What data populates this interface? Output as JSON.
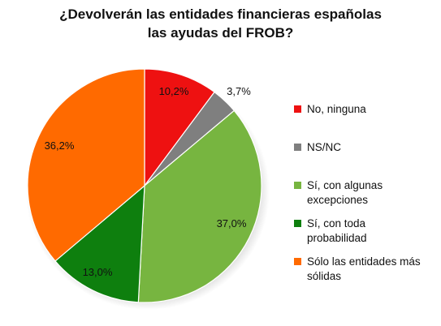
{
  "title_lines": [
    "¿Devolverán las entidades financieras españolas",
    "las ayudas del FROB?"
  ],
  "colors": {
    "no_ninguna": "#ee1111",
    "ns_nc": "#7f7f7f",
    "algunas_excepciones": "#77b540",
    "toda_probabilidad": "#0e7f0e",
    "mas_solidas": "#ff6a00"
  },
  "chart_data": {
    "type": "pie",
    "title": "¿Devolverán las entidades financieras españolas las ayudas del FROB?",
    "start": "12 o'clock, clockwise",
    "legend_position": "right",
    "slices": [
      {
        "key": "no_ninguna",
        "legend": [
          "No, ninguna"
        ],
        "value": 10.2,
        "label": "10,2%"
      },
      {
        "key": "ns_nc",
        "legend": [
          "NS/NC"
        ],
        "value": 3.7,
        "label": "3,7%"
      },
      {
        "key": "algunas_excepciones",
        "legend": [
          "Sí, con algunas",
          "excepciones"
        ],
        "value": 37.0,
        "label": "37,0%"
      },
      {
        "key": "toda_probabilidad",
        "legend": [
          "Sí, con toda",
          "probabilidad"
        ],
        "value": 13.0,
        "label": "13,0%"
      },
      {
        "key": "mas_solidas",
        "legend": [
          "Sólo las entidades más",
          "sólidas"
        ],
        "value": 36.2,
        "label": "36,2%"
      }
    ]
  }
}
